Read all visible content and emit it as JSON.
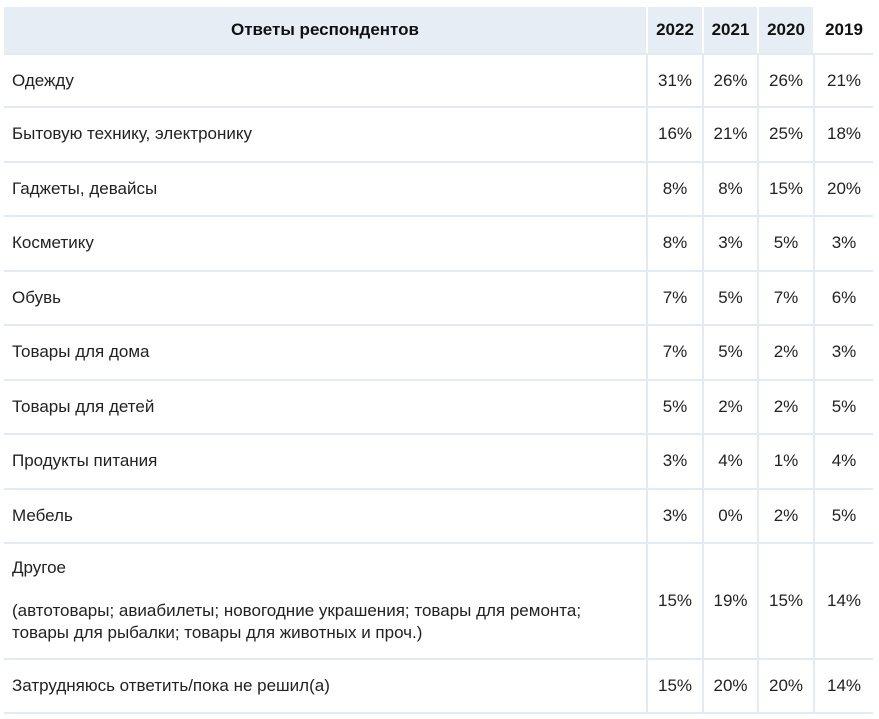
{
  "table": {
    "header": {
      "label": "Ответы респондентов",
      "years": [
        "2022",
        "2021",
        "2020",
        "2019"
      ]
    },
    "rows": [
      {
        "label": "Одежду",
        "values": [
          "31%",
          "26%",
          "26%",
          "21%"
        ]
      },
      {
        "label": "Бытовую технику, электронику",
        "values": [
          "16%",
          "21%",
          "25%",
          "18%"
        ]
      },
      {
        "label": "Гаджеты, девайсы",
        "values": [
          "8%",
          "8%",
          "15%",
          "20%"
        ]
      },
      {
        "label": "Косметику",
        "values": [
          "8%",
          "3%",
          "5%",
          "3%"
        ]
      },
      {
        "label": "Обувь",
        "values": [
          "7%",
          "5%",
          "7%",
          "6%"
        ]
      },
      {
        "label": "Товары для дома",
        "values": [
          "7%",
          "5%",
          "2%",
          "3%"
        ]
      },
      {
        "label": "Товары для детей",
        "values": [
          "5%",
          "2%",
          "2%",
          "5%"
        ]
      },
      {
        "label": "Продукты питания",
        "values": [
          "3%",
          "4%",
          "1%",
          "4%"
        ]
      },
      {
        "label": "Мебель",
        "values": [
          "3%",
          "0%",
          "2%",
          "5%"
        ]
      },
      {
        "label": "Другое",
        "sublabel": "(автотовары; авиабилеты; новогодние украшения; товары для ремонта; товары для рыбалки; товары для животных и проч.)",
        "values": [
          "15%",
          "19%",
          "15%",
          "14%"
        ]
      },
      {
        "label": "Затрудняюсь ответить/пока не решил(а)",
        "values": [
          "15%",
          "20%",
          "20%",
          "14%"
        ]
      }
    ]
  },
  "colors": {
    "header_bg": "#e6edf5",
    "grid_line": "#e4eaf1",
    "text": "#222222"
  }
}
